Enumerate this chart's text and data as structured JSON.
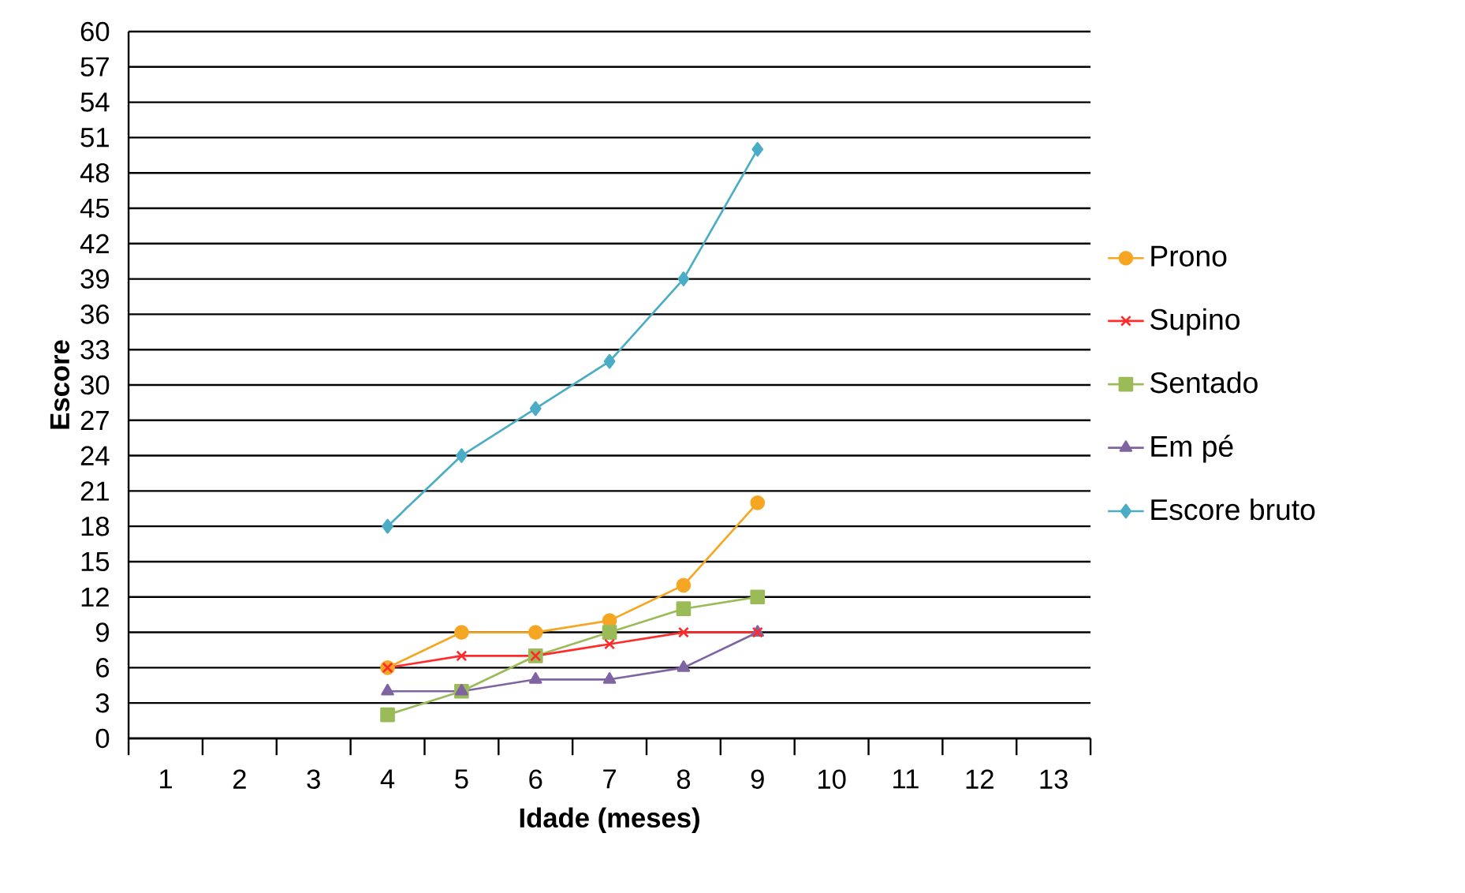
{
  "chart_data": {
    "type": "line",
    "xlabel": "Idade (meses)",
    "ylabel": "Escore",
    "categories": [
      "1",
      "2",
      "3",
      "4",
      "5",
      "6",
      "7",
      "8",
      "9",
      "10",
      "11",
      "12",
      "13"
    ],
    "series": [
      {
        "name": "Prono",
        "color": "#f5a623",
        "marker": "circle",
        "values": [
          null,
          null,
          null,
          6,
          9,
          9,
          10,
          13,
          20,
          null,
          null,
          null,
          null
        ]
      },
      {
        "name": "Supino",
        "color": "#ff2a2a",
        "marker": "cross",
        "values": [
          null,
          null,
          null,
          6,
          7,
          7,
          8,
          9,
          9,
          null,
          null,
          null,
          null
        ]
      },
      {
        "name": "Sentado",
        "color": "#9bbb59",
        "marker": "square",
        "values": [
          null,
          null,
          null,
          2,
          4,
          7,
          9,
          11,
          12,
          null,
          null,
          null,
          null
        ]
      },
      {
        "name": "Em pé",
        "color": "#8064a2",
        "marker": "triangle",
        "values": [
          null,
          null,
          null,
          4,
          4,
          5,
          5,
          6,
          9,
          null,
          null,
          null,
          null
        ]
      },
      {
        "name": "Escore bruto",
        "color": "#4bacc6",
        "marker": "diamond",
        "values": [
          null,
          null,
          null,
          18,
          24,
          28,
          32,
          39,
          50,
          null,
          null,
          null,
          null
        ]
      }
    ],
    "ylim": [
      0,
      60
    ],
    "yticks": [
      0,
      3,
      6,
      9,
      12,
      15,
      18,
      21,
      24,
      27,
      30,
      33,
      36,
      39,
      42,
      45,
      48,
      51,
      54,
      57,
      60
    ],
    "grid": "y",
    "legend": "right"
  }
}
